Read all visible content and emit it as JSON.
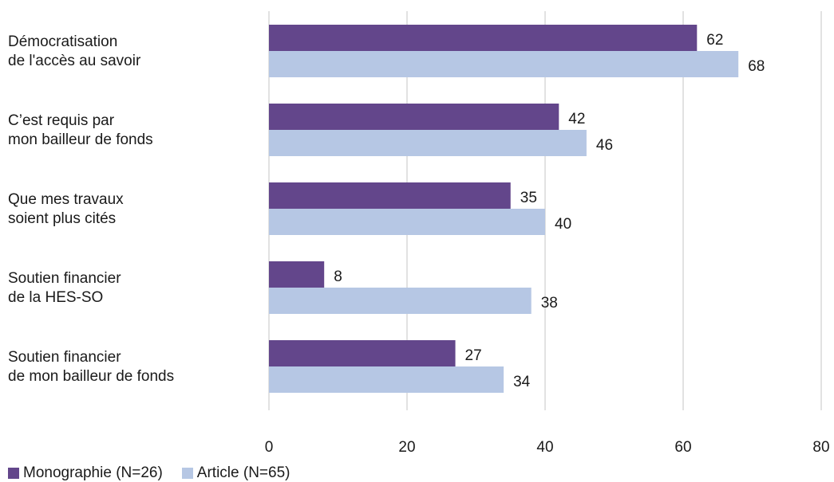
{
  "chart_data": {
    "type": "bar",
    "orientation": "horizontal",
    "categories": [
      [
        "Démocratisation",
        "de l'accès au savoir"
      ],
      [
        "C’est requis par",
        "mon bailleur de fonds"
      ],
      [
        "Que mes travaux",
        "soient plus cités"
      ],
      [
        "Soutien financier",
        "de la HES-SO"
      ],
      [
        "Soutien financier",
        "de mon bailleur de fonds"
      ]
    ],
    "series": [
      {
        "name": "Monographie (N=26)",
        "color": "#63468b",
        "values": [
          62,
          42,
          35,
          8,
          27
        ]
      },
      {
        "name": "Article (N=65)",
        "color": "#b6c7e4",
        "values": [
          68,
          46,
          40,
          38,
          34
        ]
      }
    ],
    "xlim": [
      0,
      80
    ],
    "xticks": [
      0,
      20,
      40,
      60,
      80
    ],
    "grid": true,
    "legend_position": "bottom-left",
    "title": "",
    "xlabel": "",
    "ylabel": ""
  }
}
